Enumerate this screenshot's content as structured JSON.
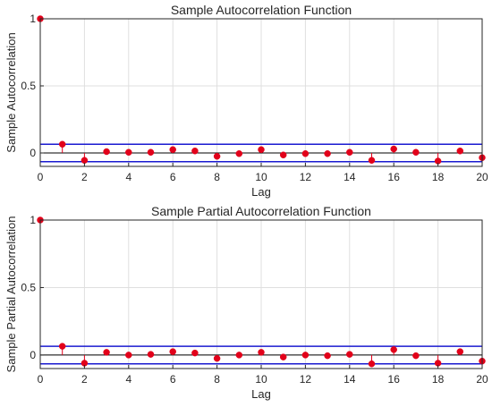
{
  "chart_data": [
    {
      "type": "stem",
      "title": "Sample Autocorrelation Function",
      "xlabel": "Lag",
      "ylabel": "Sample Autocorrelation",
      "xlim": [
        0,
        20
      ],
      "ylim": [
        -0.1,
        1
      ],
      "xticks": [
        "0",
        "2",
        "4",
        "6",
        "8",
        "10",
        "12",
        "14",
        "16",
        "18",
        "20"
      ],
      "yticks": [
        "0",
        "0.5",
        "1"
      ],
      "grid": true,
      "x": [
        0,
        1,
        2,
        3,
        4,
        5,
        6,
        7,
        8,
        9,
        10,
        11,
        12,
        13,
        14,
        15,
        16,
        17,
        18,
        19,
        20
      ],
      "values": [
        1.0,
        0.065,
        -0.055,
        0.01,
        0.005,
        0.005,
        0.025,
        0.015,
        -0.025,
        -0.005,
        0.025,
        -0.015,
        -0.005,
        -0.005,
        0.005,
        -0.055,
        0.03,
        0.005,
        -0.06,
        0.015,
        -0.035
      ],
      "confidence_bounds": [
        0.065,
        -0.065
      ],
      "marker_color": "#e2001a",
      "bound_color": "#1a1ad0"
    },
    {
      "type": "stem",
      "title": "Sample Partial Autocorrelation Function",
      "xlabel": "Lag",
      "ylabel": "Sample Partial Autocorrelation",
      "xlim": [
        0,
        20
      ],
      "ylim": [
        -0.1,
        1
      ],
      "xticks": [
        "0",
        "2",
        "4",
        "6",
        "8",
        "10",
        "12",
        "14",
        "16",
        "18",
        "20"
      ],
      "yticks": [
        "0",
        "0.5",
        "1"
      ],
      "grid": true,
      "x": [
        0,
        1,
        2,
        3,
        4,
        5,
        6,
        7,
        8,
        9,
        10,
        11,
        12,
        13,
        14,
        15,
        16,
        17,
        18,
        19,
        20
      ],
      "values": [
        1.0,
        0.065,
        -0.06,
        0.02,
        0.0,
        0.005,
        0.025,
        0.015,
        -0.025,
        0.0,
        0.02,
        -0.015,
        0.0,
        -0.005,
        0.005,
        -0.065,
        0.04,
        -0.005,
        -0.06,
        0.025,
        -0.045
      ],
      "confidence_bounds": [
        0.065,
        -0.065
      ],
      "marker_color": "#e2001a",
      "bound_color": "#1a1ad0"
    }
  ]
}
